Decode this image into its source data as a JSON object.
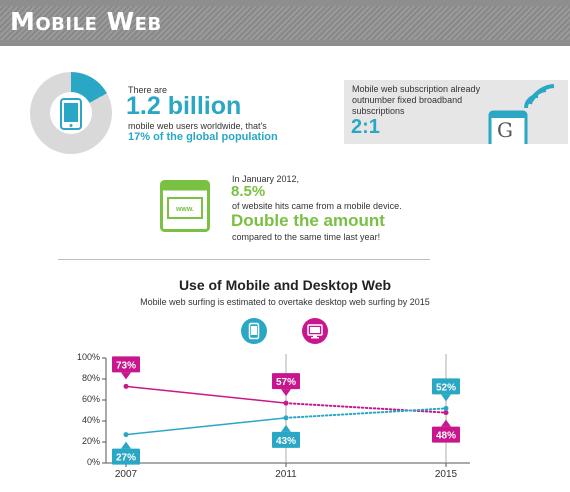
{
  "header": {
    "title": "Mobile Web"
  },
  "stat_users": {
    "intro": "There are",
    "value": "1.2 billion",
    "line": "mobile web users worldwide, that's",
    "highlight": "17% of the global population"
  },
  "stat_subscriptions": {
    "text_line1": "Mobile web subscription already",
    "text_line2": "outnumber fixed broadband",
    "text_line3": "subscriptions",
    "ratio": "2:1",
    "icon_letter": "G"
  },
  "stat_hits": {
    "intro": "In January 2012,",
    "value": "8.5%",
    "line": "of website hits came from a mobile device.",
    "highlight": "Double the amount",
    "line2": "compared to the same time last year!",
    "icon_text": "www."
  },
  "colors": {
    "mobile": "#2aa7c4",
    "desktop": "#c8168c",
    "gray": "#d9d9d9"
  },
  "icons": [
    "smartphone-icon",
    "wifi-icon",
    "browser-window-icon",
    "desktop-monitor-icon"
  ],
  "chart_data": {
    "type": "line",
    "title": "Use of Mobile and Desktop Web",
    "subtitle": "Mobile web surfing is estimated to overtake desktop web surfing by 2015",
    "x": [
      2007,
      2011,
      2015
    ],
    "x_tick_labels": [
      "2007",
      "2011",
      "2015"
    ],
    "ylim": [
      0,
      100
    ],
    "y_tick_labels": [
      "0%",
      "20%",
      "40%",
      "60%",
      "80%",
      "100%"
    ],
    "grid": false,
    "legend": "icons above plot",
    "series": [
      {
        "key": "desktop",
        "icon": "desktop-monitor-icon",
        "values": [
          73,
          57,
          48
        ],
        "labels": [
          "73%",
          "57%",
          "48%"
        ],
        "projected_from_index": 1
      },
      {
        "key": "mobile",
        "icon": "smartphone-icon",
        "values": [
          27,
          43,
          52
        ],
        "labels": [
          "27%",
          "43%",
          "52%"
        ],
        "projected_from_index": 1
      }
    ]
  }
}
